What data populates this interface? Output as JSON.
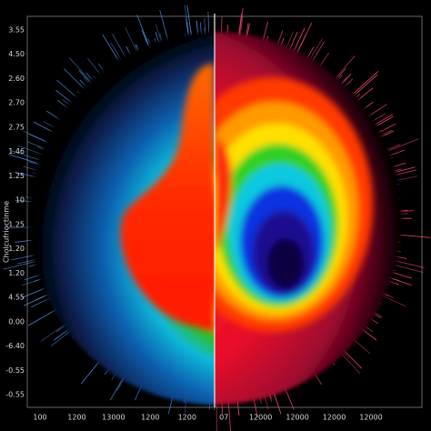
{
  "chart_data": {
    "type": "radial-image",
    "y_label": "Cholcufrioctinme",
    "y_labels": [
      "3.55",
      "4.50",
      "2.60",
      "2.70",
      "2.75",
      "1.46",
      "1.25",
      "10",
      "1.25",
      "1.20",
      "1.20",
      "4.55",
      "0.00",
      "-6.40",
      "-0.55",
      "-0.55"
    ],
    "x_labels": [
      "100",
      "1200",
      "13000",
      "1200",
      "1200",
      "07",
      "12000",
      "12000",
      "12000",
      "12000"
    ]
  }
}
